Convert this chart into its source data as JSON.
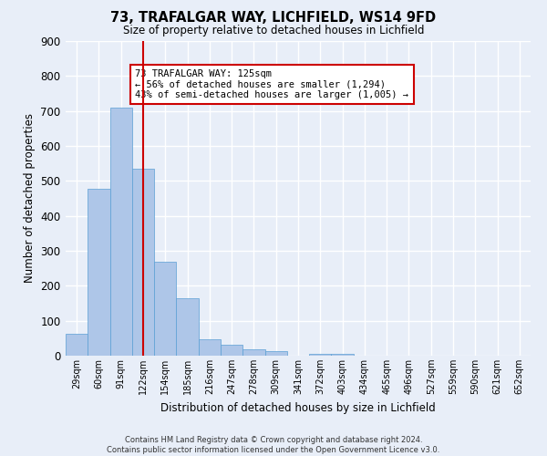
{
  "title1": "73, TRAFALGAR WAY, LICHFIELD, WS14 9FD",
  "title2": "Size of property relative to detached houses in Lichfield",
  "xlabel": "Distribution of detached houses by size in Lichfield",
  "ylabel": "Number of detached properties",
  "categories": [
    "29sqm",
    "60sqm",
    "91sqm",
    "122sqm",
    "154sqm",
    "185sqm",
    "216sqm",
    "247sqm",
    "278sqm",
    "309sqm",
    "341sqm",
    "372sqm",
    "403sqm",
    "434sqm",
    "465sqm",
    "496sqm",
    "527sqm",
    "559sqm",
    "590sqm",
    "621sqm",
    "652sqm"
  ],
  "values": [
    62,
    478,
    710,
    536,
    270,
    165,
    48,
    32,
    17,
    12,
    0,
    6,
    5,
    0,
    0,
    0,
    0,
    0,
    0,
    0,
    0
  ],
  "bar_color": "#aec6e8",
  "bar_edge_color": "#5a9fd4",
  "vline_x": 3,
  "vline_color": "#cc0000",
  "annotation_text": "73 TRAFALGAR WAY: 125sqm\n← 56% of detached houses are smaller (1,294)\n43% of semi-detached houses are larger (1,005) →",
  "annotation_box_color": "#cc0000",
  "ylim": [
    0,
    900
  ],
  "yticks": [
    0,
    100,
    200,
    300,
    400,
    500,
    600,
    700,
    800,
    900
  ],
  "footnote": "Contains HM Land Registry data © Crown copyright and database right 2024.\nContains public sector information licensed under the Open Government Licence v3.0.",
  "bg_color": "#e8eef8",
  "grid_color": "#ffffff"
}
